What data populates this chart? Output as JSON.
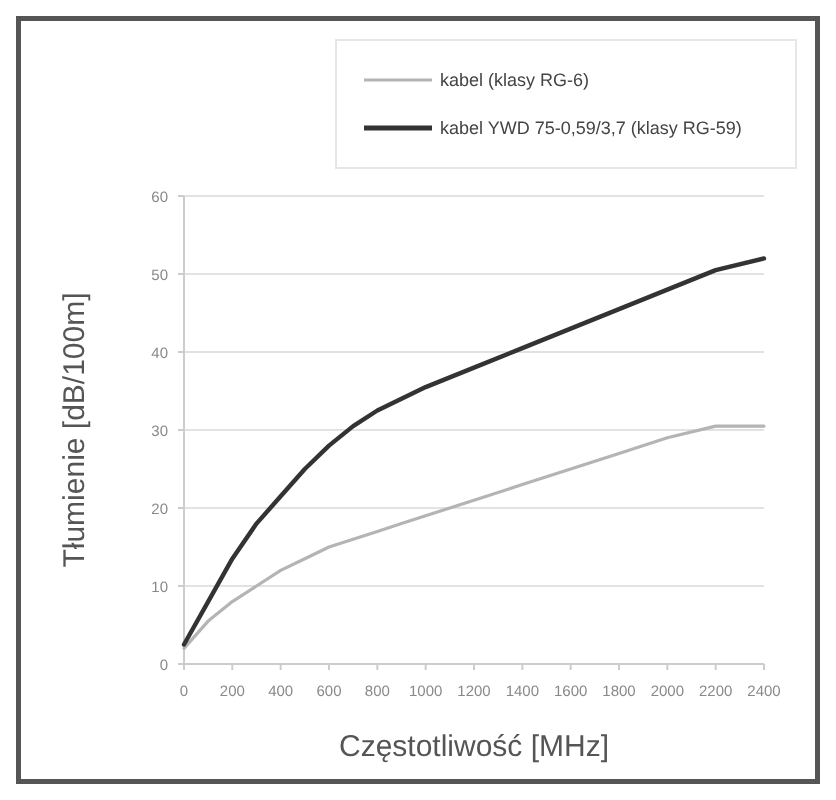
{
  "chart_data": {
    "type": "line",
    "xlabel": "Częstotliwość [MHz]",
    "ylabel": "Tłumienie [dB/100m]",
    "x": [
      0,
      100,
      200,
      300,
      400,
      500,
      600,
      700,
      800,
      900,
      1000,
      1200,
      1400,
      1600,
      1800,
      2000,
      2200,
      2400
    ],
    "series": [
      {
        "name": "kabel (klasy RG-6)",
        "color": "#b4b4b4",
        "values": [
          2,
          5.5,
          8,
          10,
          12,
          13.5,
          15,
          16,
          17,
          18,
          19,
          21,
          23,
          25,
          27,
          29,
          30.5,
          30.5
        ]
      },
      {
        "name": "kabel YWD 75-0,59/3,7  (klasy RG-59)",
        "color": "#333333",
        "values": [
          2.5,
          8,
          13.5,
          18,
          21.5,
          25,
          28,
          30.5,
          32.5,
          34,
          35.5,
          38,
          40.5,
          43,
          45.5,
          48,
          50.5,
          52
        ]
      }
    ],
    "xlim": [
      0,
      2400
    ],
    "xticks": [
      0,
      200,
      400,
      600,
      800,
      1000,
      1200,
      1400,
      1600,
      1800,
      2000,
      2200,
      2400
    ],
    "ylim": [
      0,
      60
    ],
    "yticks": [
      0,
      10,
      20,
      30,
      40,
      50,
      60
    ],
    "grid": "y",
    "legend": "top right",
    "marker": "none",
    "line_style": "solid"
  }
}
